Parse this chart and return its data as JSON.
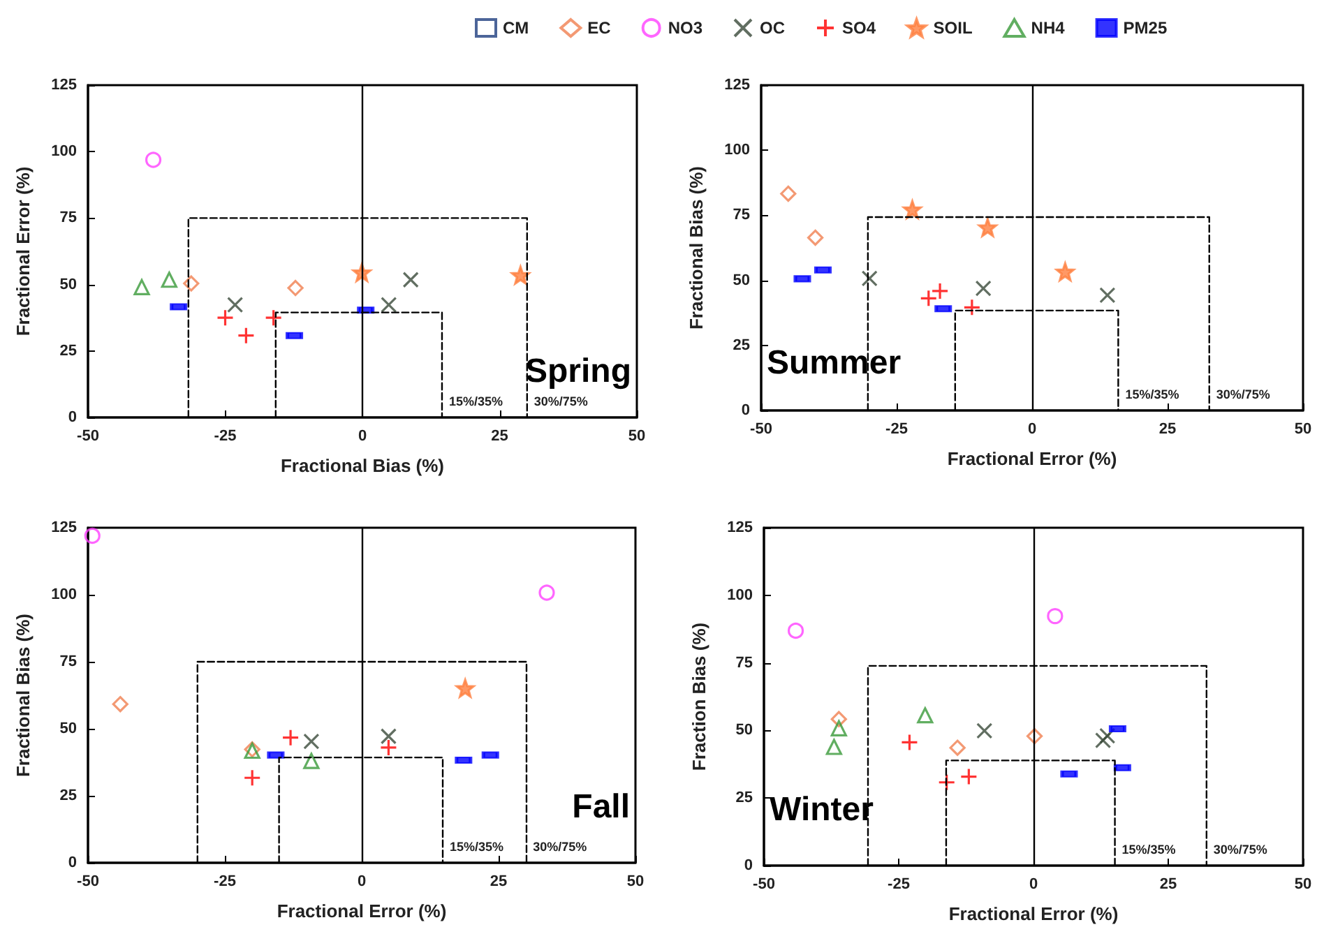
{
  "chart_data": [
    {
      "type": "scatter",
      "xlabel": "Fractional Bias (%)",
      "ylabel": "Fractional Error (%)",
      "xlim": [
        -50,
        50
      ],
      "xticks": [
        -50,
        -25,
        0,
        25,
        50
      ],
      "ylim": [
        0,
        125
      ],
      "yticks": [
        0,
        25,
        50,
        75,
        100,
        125
      ],
      "grid": false,
      "legend": "top",
      "annotations": [
        "Spring",
        {
          "text": "15%/35%",
          "x": 14.5,
          "y": 0
        },
        {
          "text": "30%/75%",
          "x": 30,
          "y": 0
        }
      ],
      "ref_lines": [
        {
          "axis": "x",
          "value": 0,
          "color": "#000000",
          "line_style": "solid"
        }
      ],
      "series": [
        {
          "name": "CM",
          "color": "#1f3f7f"
        },
        {
          "name": "EC",
          "color": "#f08050",
          "marker": "diamond",
          "x": [
            -31.2,
            -12.2
          ],
          "values": [
            50.4,
            48.7
          ]
        },
        {
          "name": "NO3",
          "color": "#ff40ff",
          "marker": "circle",
          "x": [
            -38.1
          ],
          "values": [
            96.9
          ]
        },
        {
          "name": "OC",
          "color": "#3a4a3a",
          "marker": "x",
          "x": [
            -23.2,
            4.8,
            8.8
          ],
          "values": [
            42.4,
            42.4,
            51.8
          ]
        },
        {
          "name": "SO4",
          "color": "#ff0000",
          "marker": "cross",
          "x": [
            -25.0,
            -21.2,
            -16.2
          ],
          "values": [
            37.5,
            30.8,
            37.5
          ]
        },
        {
          "name": "SOIL",
          "color": "#ff8040",
          "marker": "star",
          "x": [
            -0.1,
            28.8
          ],
          "values": [
            54.5,
            53.5
          ]
        },
        {
          "name": "NH4",
          "color": "#3a9a3a",
          "marker": "triangle",
          "x": [
            -40.2,
            -35.2
          ],
          "values": [
            49.0,
            51.8
          ]
        },
        {
          "name": "PM25",
          "color": "#0000ff",
          "marker": "square",
          "x": [
            -33.5,
            -12.4,
            0.6
          ],
          "values": [
            41.6,
            30.8,
            40.4
          ]
        },
        {
          "type": "line",
          "color": "#000000",
          "marker": "none",
          "line_style": "dashed",
          "x": [
            -31.7,
            -31.7,
            30,
            30
          ],
          "values": [
            0,
            75,
            75,
            0
          ]
        },
        {
          "type": "line",
          "color": "#000000",
          "marker": "none",
          "line_style": "dashed",
          "x": [
            -15.8,
            -15.8,
            14.5,
            14.5
          ],
          "values": [
            0,
            39.5,
            39.5,
            0
          ]
        }
      ]
    },
    {
      "type": "scatter",
      "xlabel": "Fractional Error (%)",
      "ylabel": "Fractional Bias (%)",
      "xlim": [
        -50,
        50
      ],
      "xticks": [
        -50,
        -25,
        0,
        25,
        50
      ],
      "ylim": [
        0,
        125
      ],
      "yticks": [
        0,
        25,
        50,
        75,
        100,
        125
      ],
      "grid": false,
      "annotations": [
        "Summer",
        {
          "text": "15%/35%",
          "x": 15.9,
          "y": 0
        },
        {
          "text": "30%/75%",
          "x": 32.7,
          "y": 0
        }
      ],
      "ref_lines": [
        {
          "axis": "x",
          "value": 0,
          "color": "#000000",
          "line_style": "solid"
        }
      ],
      "series": [
        {
          "color": "#f08050",
          "marker": "diamond",
          "x": [
            -45.0,
            -40.0
          ],
          "values": [
            83.3,
            66.4
          ]
        },
        {
          "color": "#3a4a3a",
          "marker": "x",
          "x": [
            -30.0,
            -9.0,
            13.9
          ],
          "values": [
            50.7,
            46.9,
            44.3
          ]
        },
        {
          "color": "#ff0000",
          "marker": "cross",
          "x": [
            -19.1,
            -17.0,
            -11.1
          ],
          "values": [
            43.1,
            45.9,
            39.6
          ]
        },
        {
          "color": "#ff8040",
          "marker": "star",
          "x": [
            -22.1,
            -8.2,
            6.1
          ],
          "values": [
            77.2,
            70.3,
            53.3
          ]
        },
        {
          "color": "#0000ff",
          "marker": "square",
          "x": [
            -42.4,
            -38.6,
            -16.4
          ],
          "values": [
            50.6,
            54.0,
            39.1
          ]
        },
        {
          "type": "line",
          "color": "#000000",
          "marker": "none",
          "line_style": "dashed",
          "x": [
            -30.3,
            -30.3,
            32.7,
            32.7
          ],
          "values": [
            0,
            74.3,
            74.3,
            0
          ]
        },
        {
          "type": "line",
          "color": "#000000",
          "marker": "none",
          "line_style": "dashed",
          "x": [
            -14.2,
            -14.2,
            15.9,
            15.9
          ],
          "values": [
            0,
            38.4,
            38.4,
            0
          ]
        }
      ]
    },
    {
      "type": "scatter",
      "xlabel": "Fractional Error (%)",
      "ylabel": "Fractional Bias (%)",
      "xlim": [
        -50,
        50
      ],
      "xticks": [
        -50,
        -25,
        0,
        25,
        50
      ],
      "ylim": [
        0,
        125
      ],
      "yticks": [
        0,
        25,
        50,
        75,
        100,
        125
      ],
      "grid": false,
      "annotations": [
        "Fall",
        {
          "text": "15%/35%",
          "x": 14.8,
          "y": 0
        },
        {
          "text": "30%/75%",
          "x": 30,
          "y": 0
        }
      ],
      "ref_lines": [
        {
          "axis": "x",
          "value": 0,
          "color": "#000000",
          "line_style": "solid"
        }
      ],
      "series": [
        {
          "color": "#f08050",
          "marker": "diamond",
          "x": [
            -44.1,
            -20.0
          ],
          "values": [
            59.2,
            42.3
          ]
        },
        {
          "color": "#ff40ff",
          "marker": "circle",
          "x": [
            -49.2,
            33.8
          ],
          "values": [
            122.0,
            100.8
          ]
        },
        {
          "color": "#3a4a3a",
          "marker": "x",
          "x": [
            -9.2,
            4.9
          ],
          "values": [
            45.3,
            47.2
          ]
        },
        {
          "color": "#ff0000",
          "marker": "cross",
          "x": [
            -20.0,
            -13.0,
            4.9
          ],
          "values": [
            31.7,
            46.7,
            43.0
          ]
        },
        {
          "color": "#ff8040",
          "marker": "star",
          "x": [
            18.9
          ],
          "values": [
            65.1
          ]
        },
        {
          "color": "#3a9a3a",
          "marker": "triangle",
          "x": [
            -20.0,
            -9.2
          ],
          "values": [
            41.8,
            38.0
          ]
        },
        {
          "color": "#0000ff",
          "marker": "square",
          "x": [
            -15.7,
            18.6,
            23.5
          ],
          "values": [
            40.2,
            38.3,
            40.2
          ]
        },
        {
          "type": "line",
          "color": "#000000",
          "marker": "none",
          "line_style": "dashed",
          "x": [
            -30.0,
            -30.0,
            30.1,
            30.1
          ],
          "values": [
            0,
            75,
            75,
            0
          ]
        },
        {
          "type": "line",
          "color": "#000000",
          "marker": "none",
          "line_style": "dashed",
          "x": [
            -15.1,
            -15.1,
            14.8,
            14.8
          ],
          "values": [
            0,
            39.3,
            39.3,
            0
          ]
        }
      ]
    },
    {
      "type": "scatter",
      "xlabel": "Fractional Error (%)",
      "ylabel": "Fraction Bias (%)",
      "xlim": [
        -50,
        50
      ],
      "xticks": [
        -50,
        -25,
        0,
        25,
        50
      ],
      "ylim": [
        0,
        125
      ],
      "yticks": [
        0,
        25,
        50,
        75,
        100,
        125
      ],
      "grid": false,
      "annotations": [
        "Winter",
        {
          "text": "15%/35%",
          "x": 15.1,
          "y": 0
        },
        {
          "text": "30%/75%",
          "x": 32.1,
          "y": 0
        }
      ],
      "ref_lines": [
        {
          "axis": "x",
          "value": 0,
          "color": "#000000",
          "line_style": "solid"
        }
      ],
      "series": [
        {
          "color": "#f08050",
          "marker": "diamond",
          "x": [
            -36.1,
            -14.1,
            0.2
          ],
          "values": [
            54.2,
            43.6,
            47.9
          ]
        },
        {
          "color": "#ff40ff",
          "marker": "circle",
          "x": [
            -44.1,
            4.0
          ],
          "values": [
            86.9,
            92.3
          ]
        },
        {
          "color": "#3a4a3a",
          "marker": "x",
          "x": [
            -9.1,
            12.9,
            13.7
          ],
          "values": [
            49.9,
            46.3,
            48.0
          ]
        },
        {
          "color": "#ff0000",
          "marker": "cross",
          "x": [
            -23.0,
            -16.1,
            -12.0
          ],
          "values": [
            45.6,
            30.8,
            32.9
          ]
        },
        {
          "color": "#3a9a3a",
          "marker": "triangle",
          "x": [
            -36.1,
            -37.0,
            -20.1
          ],
          "values": [
            50.8,
            43.9,
            55.6
          ]
        },
        {
          "color": "#0000ff",
          "marker": "square",
          "x": [
            6.6,
            15.6,
            16.5
          ],
          "values": [
            33.9,
            50.6,
            36.2
          ]
        },
        {
          "type": "line",
          "color": "#000000",
          "marker": "none",
          "line_style": "dashed",
          "x": [
            -30.7,
            -30.7,
            32.1,
            32.1
          ],
          "values": [
            0,
            73.9,
            73.9,
            0
          ]
        },
        {
          "type": "line",
          "color": "#000000",
          "marker": "none",
          "line_style": "dashed",
          "x": [
            -16.2,
            -16.2,
            15.1,
            15.1
          ],
          "values": [
            0,
            38.9,
            38.9,
            0
          ]
        }
      ]
    }
  ]
}
